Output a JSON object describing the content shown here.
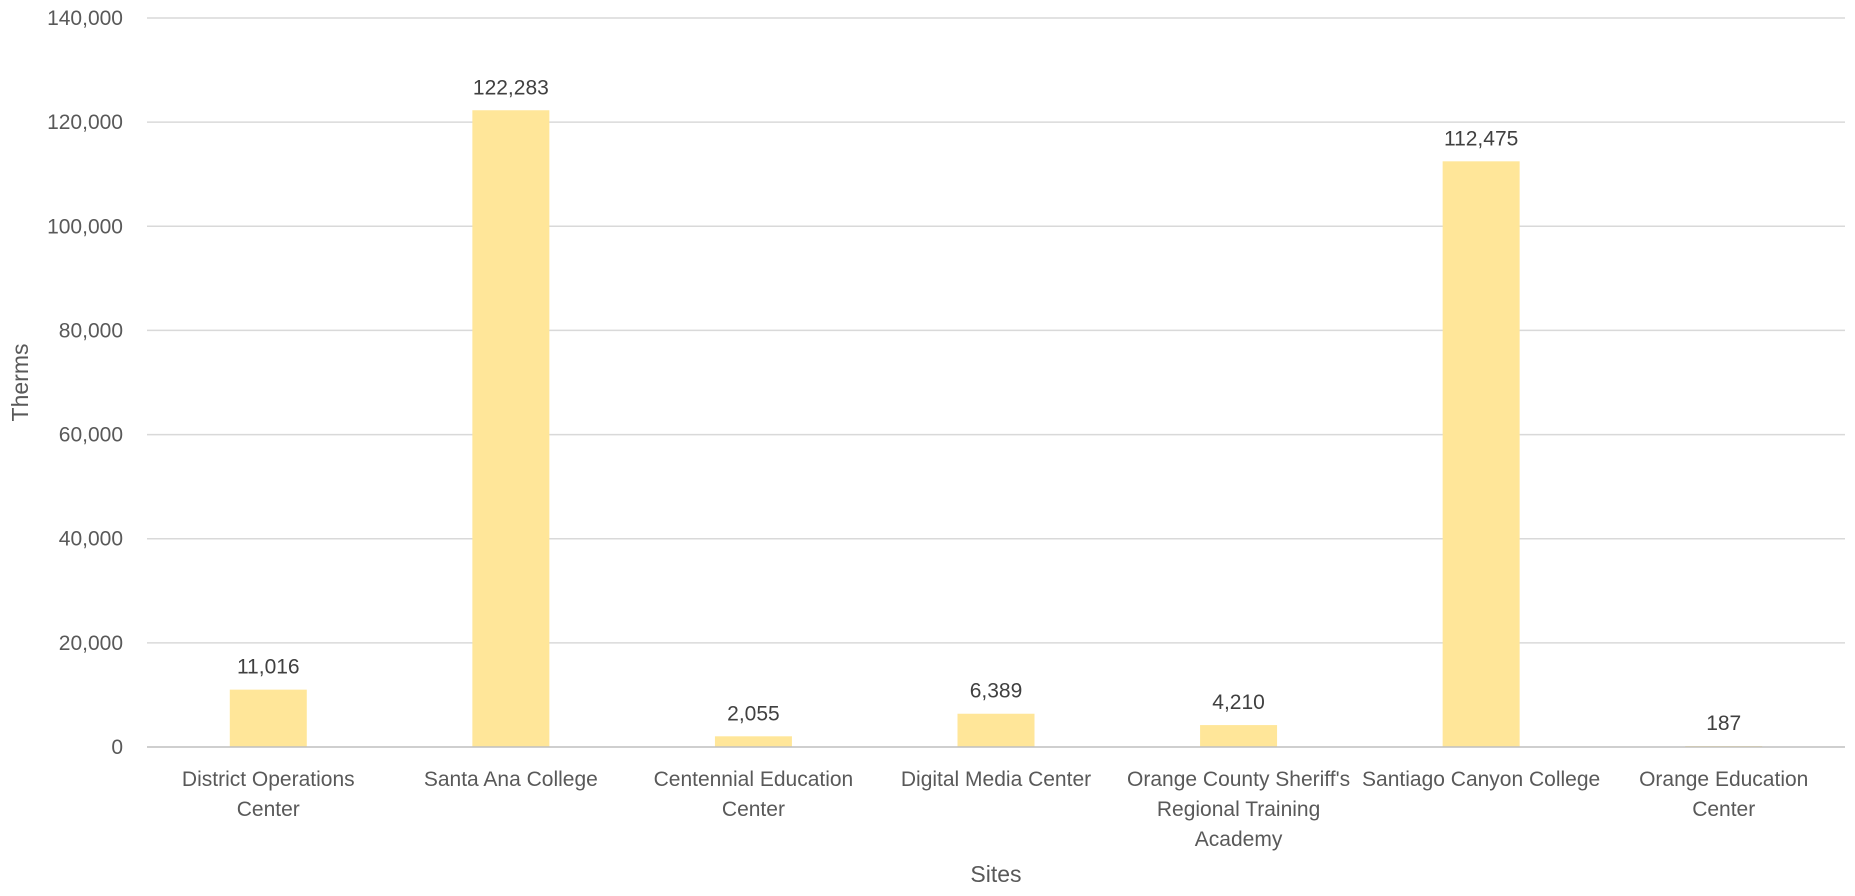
{
  "chart_data": {
    "type": "bar",
    "title": "",
    "xlabel": "Sites",
    "ylabel": "Therms",
    "ylim": [
      0,
      140000
    ],
    "yticks": [
      0,
      20000,
      40000,
      60000,
      80000,
      100000,
      120000,
      140000
    ],
    "ytick_labels": [
      "0",
      "20,000",
      "40,000",
      "60,000",
      "80,000",
      "100,000",
      "120,000",
      "140,000"
    ],
    "grid": true,
    "legend": "none",
    "bar_color": "#FFE699",
    "categories": [
      [
        "District Operations",
        "Center"
      ],
      [
        "Santa Ana College"
      ],
      [
        "Centennial Education",
        "Center"
      ],
      [
        "Digital Media Center"
      ],
      [
        "Orange County Sheriff's",
        "Regional Training",
        "Academy"
      ],
      [
        "Santiago Canyon College"
      ],
      [
        "Orange Education",
        "Center"
      ]
    ],
    "values": [
      11016,
      122283,
      2055,
      6389,
      4210,
      112475,
      187
    ],
    "data_labels": [
      "11,016",
      "122,283",
      "2,055",
      "6,389",
      "4,210",
      "112,475",
      "187"
    ]
  }
}
